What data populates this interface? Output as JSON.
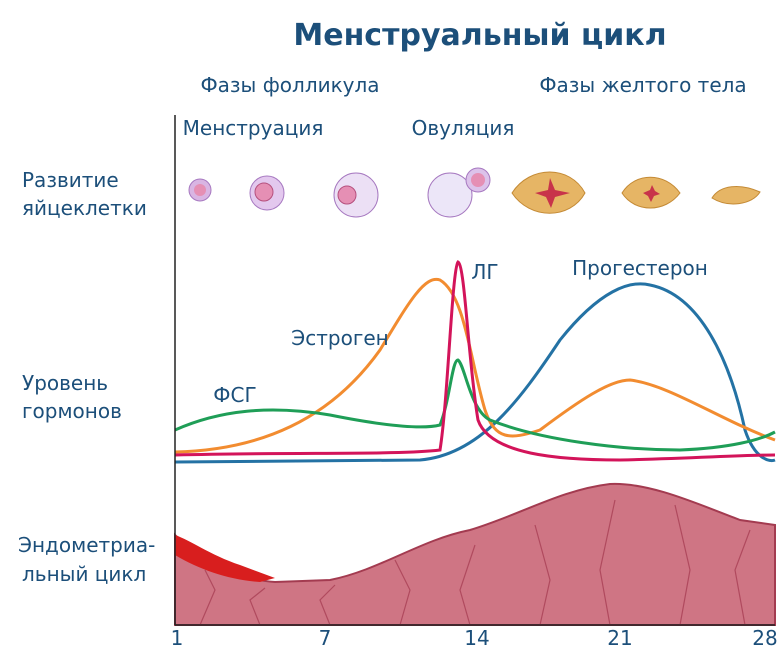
{
  "title": "Менструальный цикл",
  "phases": {
    "follicular": "Фазы фолликула",
    "luteal": "Фазы желтого тела"
  },
  "events": {
    "menstruation": "Менструация",
    "ovulation": "Овуляция"
  },
  "rows": {
    "egg": [
      "Развитие",
      "яйцеклетки"
    ],
    "hormones": [
      "Уровень",
      "гормонов"
    ],
    "endometrium": [
      "Эндометриа-",
      "льный цикл"
    ]
  },
  "hormones": {
    "fsh": "ФСГ",
    "estrogen": "Эстроген",
    "lh": "ЛГ",
    "progesterone": "Прогестерон"
  },
  "days": [
    1,
    7,
    14,
    21,
    28
  ]
}
